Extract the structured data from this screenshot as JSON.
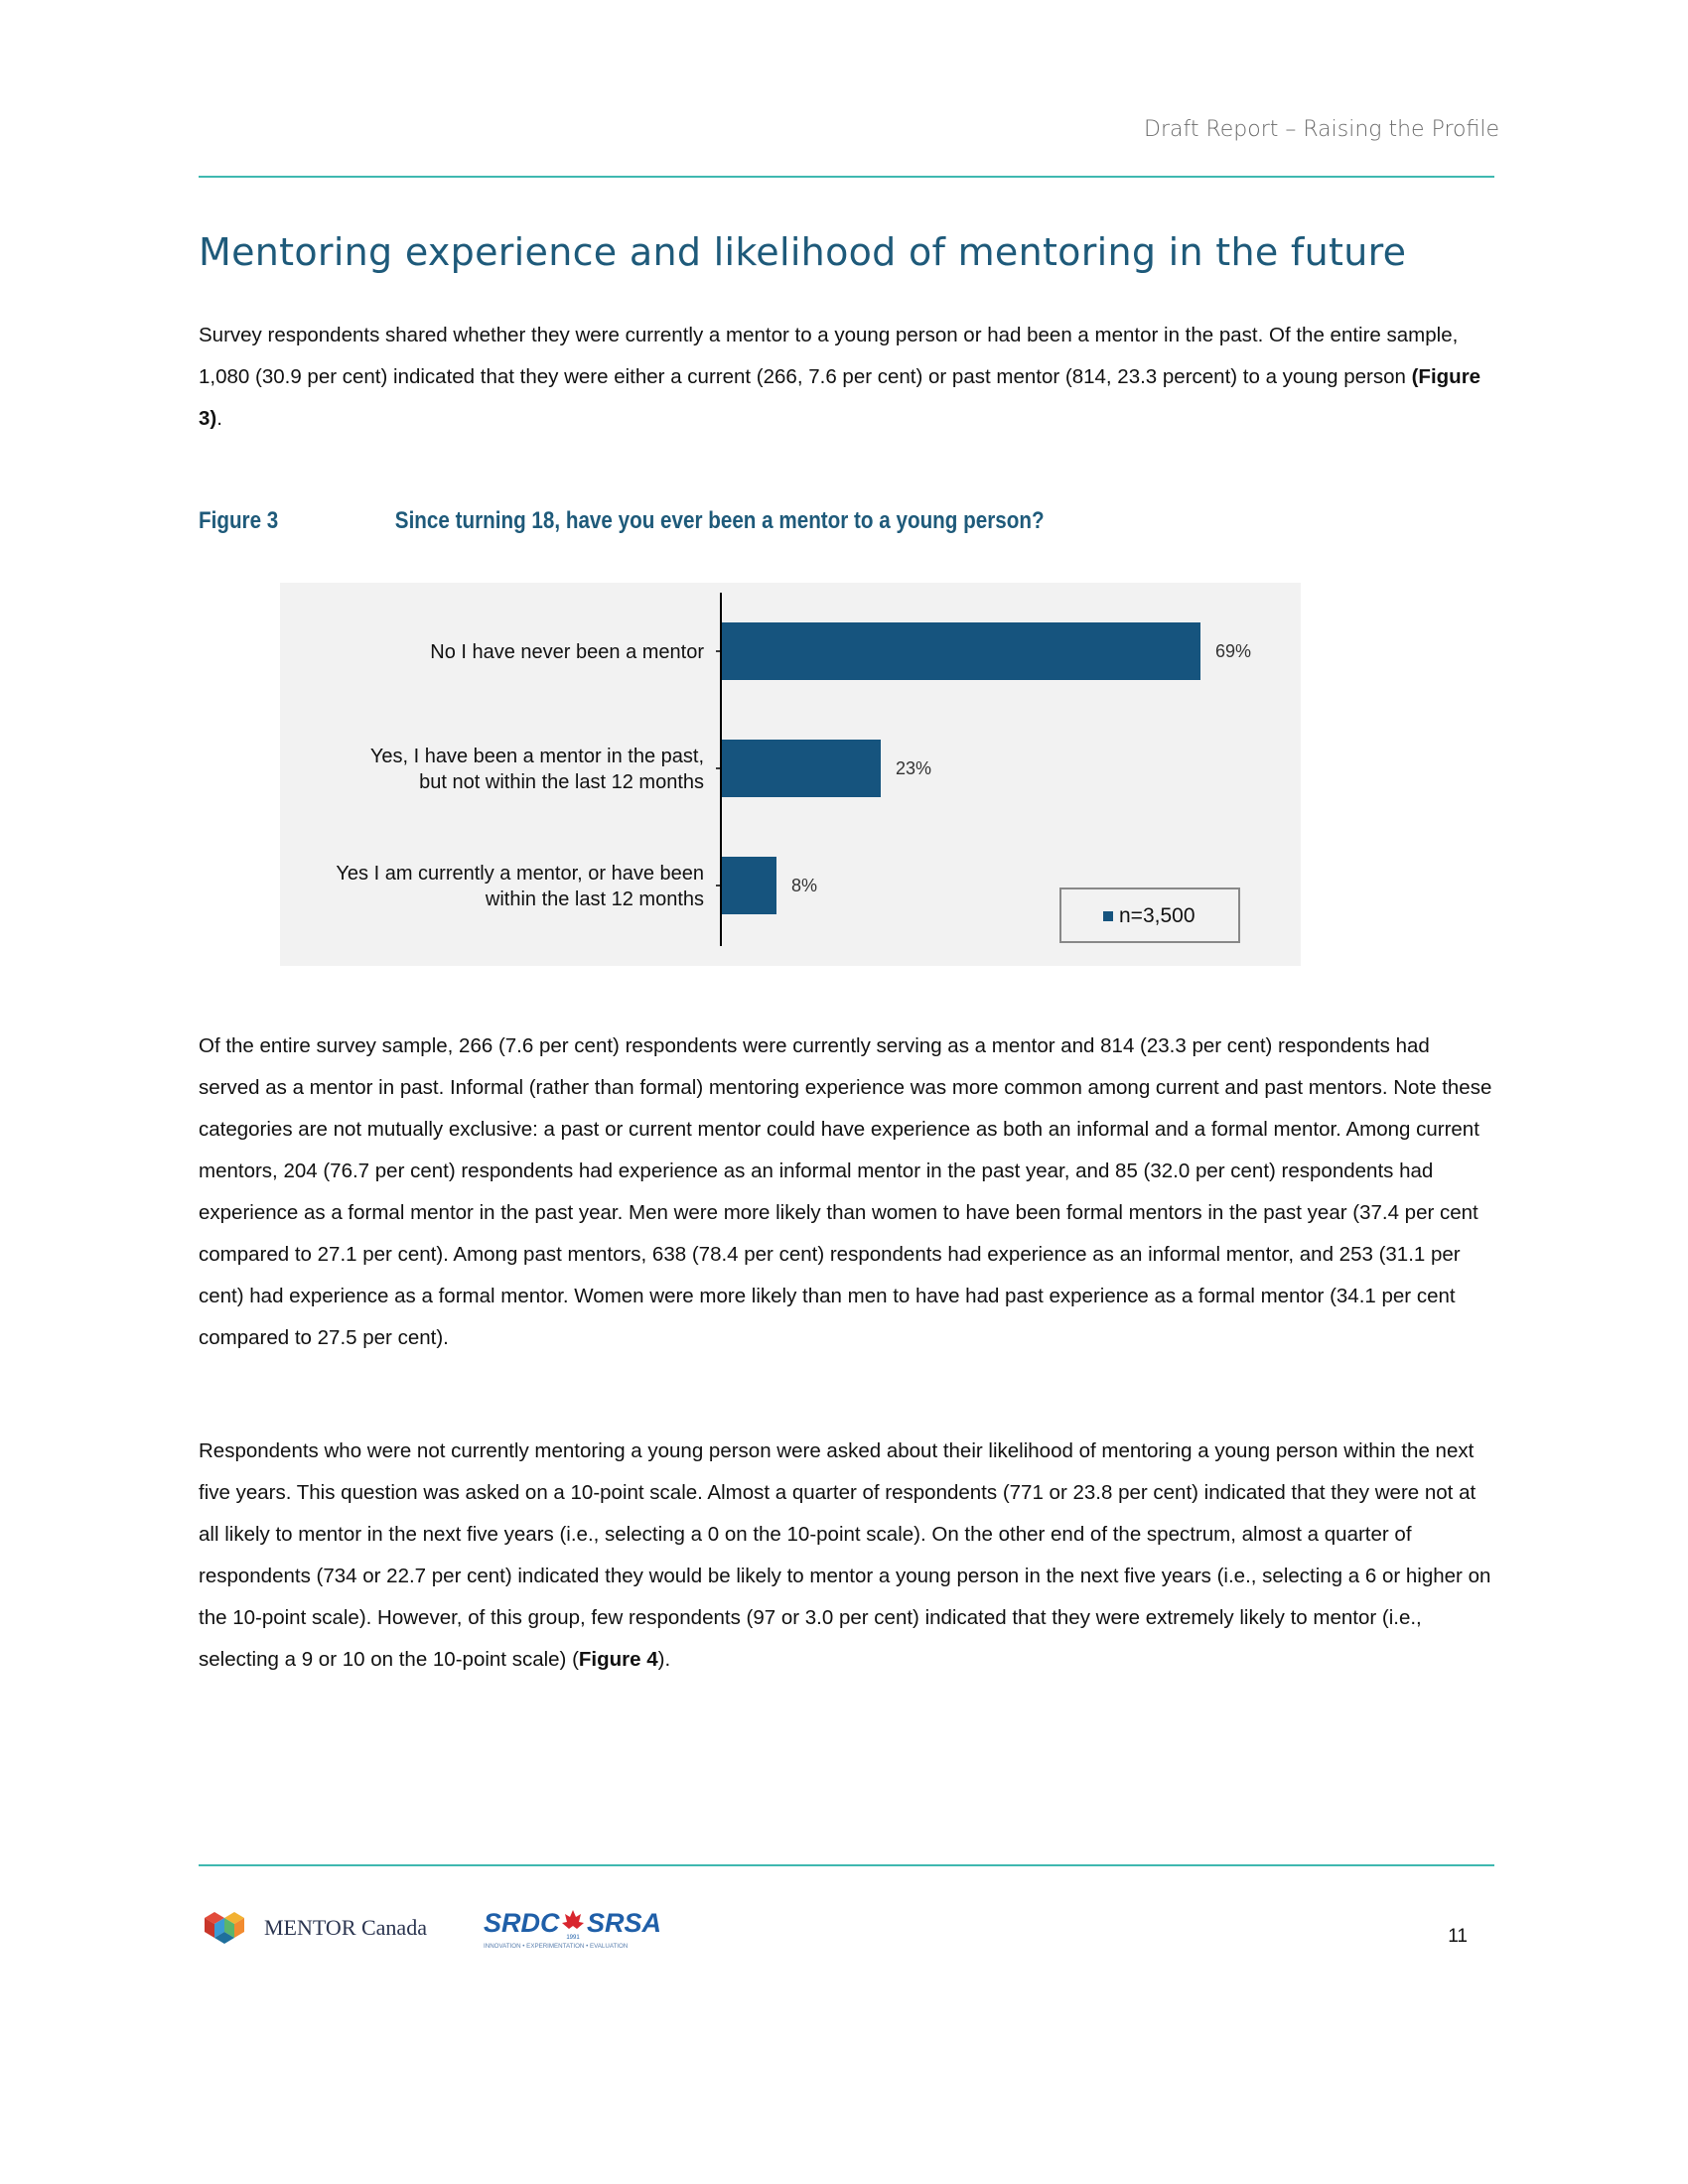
{
  "header": {
    "running_title": "Draft Report – Raising the Profile"
  },
  "section": {
    "title": "Mentoring experience and likelihood of mentoring in the future"
  },
  "paragraphs": {
    "p1": {
      "text": "Survey respondents shared whether they were currently a mentor to a young person or had been a mentor in the past. Of the entire sample, 1,080 (30.9 per cent) indicated that they were either a current (266, 7.6 per cent) or past mentor (814, 23.3 percent) to a young person ",
      "ref": "(Figure 3)",
      "tail": "."
    },
    "p2": {
      "text": "Of the entire survey sample, 266 (7.6 per cent) respondents were currently serving as a mentor and 814 (23.3 per cent) respondents had served as a mentor in past. Informal (rather than formal) mentoring experience was more common among current and past mentors. Note these categories are not mutually exclusive: a past or current mentor could have experience as both an informal and a formal mentor.  Among current mentors, 204 (76.7 per cent) respondents had experience as an informal mentor in the past year, and 85 (32.0 per cent) respondents had experience as a formal mentor in the past year. Men were more likely than women to have been formal mentors in the past year (37.4 per cent compared to 27.1 per cent). Among past mentors, 638 (78.4 per cent) respondents had experience as an informal mentor, and 253 (31.1 per cent) had experience as a formal mentor. Women were more likely than men to have had past experience as a formal mentor (34.1 per cent compared to 27.5 per cent)."
    },
    "p3": {
      "text": "Respondents who were not currently mentoring a young person were asked about their likelihood of mentoring a young person within the next five years. This question was asked on a 10-point scale. Almost a quarter of respondents (771 or 23.8 per cent) indicated that they were not at all likely to mentor in the next five years (i.e., selecting a 0 on the 10-point scale). On the other end of the spectrum, almost a quarter of respondents (734 or 22.7 per cent) indicated they would be likely to mentor a young person in the next five years (i.e., selecting a 6 or higher on the 10-point scale). However, of this group, few respondents (97 or 3.0 per cent) indicated that they were extremely likely to mentor (i.e., selecting a 9 or 10 on the 10-point scale) (",
      "ref": "Figure 4",
      "tail": ")."
    }
  },
  "figure": {
    "label": "Figure 3",
    "title": "Since turning 18, have you ever been a mentor to a young person?"
  },
  "chart_data": {
    "type": "bar",
    "orientation": "horizontal",
    "categories": [
      [
        "No I have never been a mentor"
      ],
      [
        "Yes, I have been a mentor in the past,",
        "but not within the last 12 months"
      ],
      [
        "Yes I am currently a mentor, or have been",
        "within the last 12 months"
      ]
    ],
    "series": [
      {
        "name": "n=3,500",
        "values": [
          69,
          23,
          8
        ]
      }
    ],
    "value_labels": [
      "69%",
      "23%",
      "8%"
    ],
    "xlim": [
      0,
      80
    ],
    "grid": false,
    "legend_position": "bottom-right",
    "bar_color": "#16547e",
    "background_color": "#f2f2f2"
  },
  "footer": {
    "logo1_name": "MENTOR Canada",
    "logo2_left": "SRDC",
    "logo2_right": "SRSA",
    "logo2_tagline": "INNOVATION • EXPERIMENTATION • EVALUATION",
    "logo2_since": "1991",
    "page_number": "11"
  },
  "colors": {
    "accent_teal": "#3fb8b0",
    "heading_blue": "#1e5a7a",
    "bar_blue": "#16547e"
  }
}
